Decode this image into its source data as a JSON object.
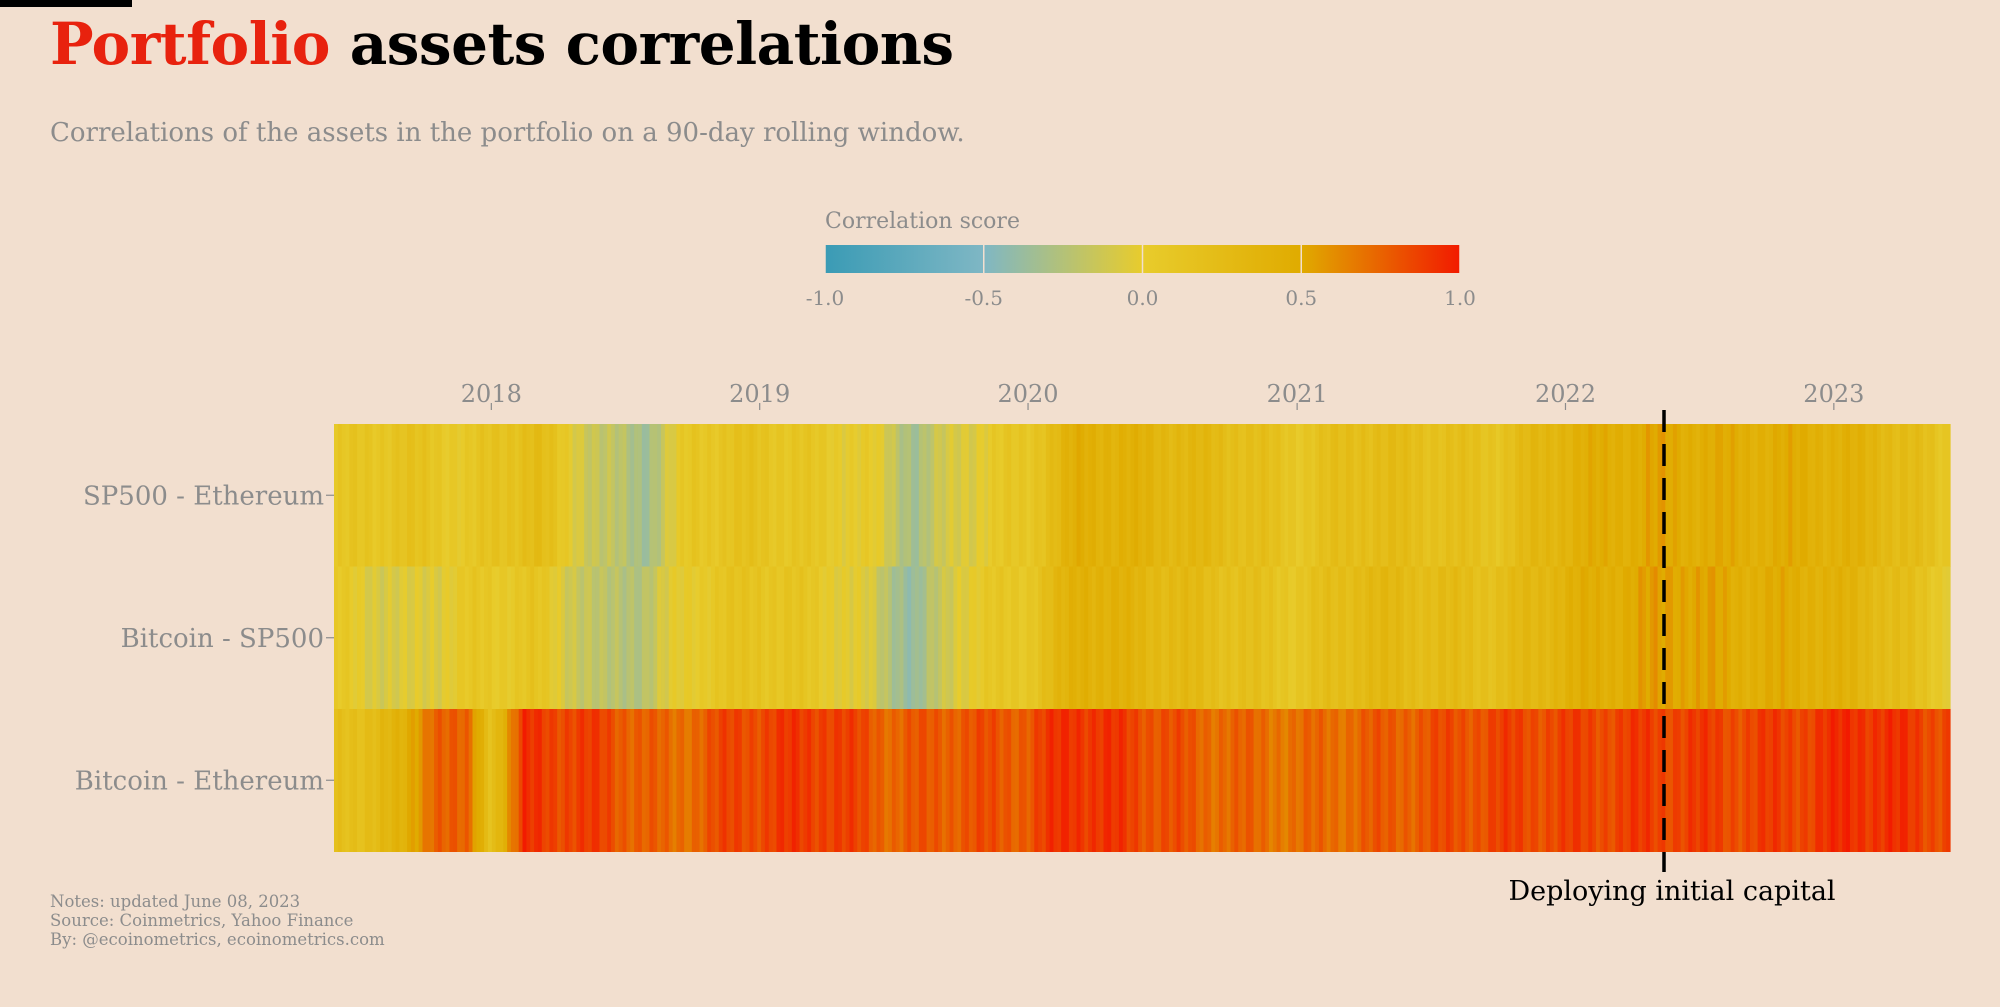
{
  "title": {
    "accent": "Portfolio",
    "rest": "assets correlations"
  },
  "subtitle": "Correlations of the assets in the portfolio on a 90-day rolling window.",
  "notes": [
    "Notes: updated June 08, 2023",
    "Source: Coinmetrics, Yahoo Finance",
    "By: @ecoinometrics, ecoinometrics.com"
  ],
  "colors": {
    "background": "#f2dfcf",
    "accent": "#e8220e",
    "scale": [
      "#3a9bb5",
      "#7fb7c4",
      "#e8cc2c",
      "#e0ab00",
      "#f21a00"
    ]
  },
  "chart_data": {
    "type": "heatmap",
    "legend": {
      "title": "Correlation score",
      "ticks": [
        "-1.0",
        "-0.5",
        "0.0",
        "0.5",
        "1.0"
      ],
      "range": [
        -1,
        1
      ],
      "placement": "top"
    },
    "x_ticks": [
      "2018",
      "2019",
      "2020",
      "2021",
      "2022",
      "2023"
    ],
    "x_range": [
      "2017-06",
      "2023-06"
    ],
    "rows": [
      "SP500 - Ethereum",
      "Bitcoin - SP500",
      "Bitcoin - Ethereum"
    ],
    "keyframes": {
      "SP500 - Ethereum": [
        [
          "2017-06-01",
          0.05
        ],
        [
          "2017-09-01",
          0.15
        ],
        [
          "2017-12-01",
          0.05
        ],
        [
          "2018-03-01",
          0.25
        ],
        [
          "2018-06-01",
          -0.2
        ],
        [
          "2018-08-01",
          -0.3
        ],
        [
          "2018-10-01",
          0.1
        ],
        [
          "2019-01-01",
          0.15
        ],
        [
          "2019-04-01",
          0.05
        ],
        [
          "2019-06-01",
          0.0
        ],
        [
          "2019-08-01",
          -0.3
        ],
        [
          "2019-10-01",
          -0.05
        ],
        [
          "2020-01-01",
          0.1
        ],
        [
          "2020-03-15",
          0.45
        ],
        [
          "2020-07-01",
          0.35
        ],
        [
          "2020-10-01",
          0.25
        ],
        [
          "2021-01-01",
          0.1
        ],
        [
          "2021-04-01",
          0.25
        ],
        [
          "2021-07-01",
          0.2
        ],
        [
          "2021-10-01",
          0.15
        ],
        [
          "2022-01-01",
          0.4
        ],
        [
          "2022-05-01",
          0.5
        ],
        [
          "2022-08-01",
          0.45
        ],
        [
          "2022-12-01",
          0.45
        ],
        [
          "2023-03-01",
          0.35
        ],
        [
          "2023-06-01",
          0.1
        ]
      ],
      "Bitcoin - SP500": [
        [
          "2017-06-01",
          0.05
        ],
        [
          "2017-09-01",
          -0.1
        ],
        [
          "2017-12-01",
          0.05
        ],
        [
          "2018-03-01",
          0.1
        ],
        [
          "2018-06-01",
          -0.25
        ],
        [
          "2018-08-01",
          -0.2
        ],
        [
          "2018-10-01",
          0.05
        ],
        [
          "2019-01-01",
          0.15
        ],
        [
          "2019-04-01",
          0.05
        ],
        [
          "2019-06-01",
          -0.1
        ],
        [
          "2019-08-01",
          -0.4
        ],
        [
          "2019-10-01",
          0.0
        ],
        [
          "2020-01-01",
          0.1
        ],
        [
          "2020-03-15",
          0.45
        ],
        [
          "2020-07-01",
          0.3
        ],
        [
          "2020-10-01",
          0.2
        ],
        [
          "2021-01-01",
          0.1
        ],
        [
          "2021-04-01",
          0.3
        ],
        [
          "2021-07-01",
          0.25
        ],
        [
          "2021-10-01",
          0.2
        ],
        [
          "2022-01-01",
          0.4
        ],
        [
          "2022-06-01",
          0.55
        ],
        [
          "2022-09-01",
          0.45
        ],
        [
          "2022-12-01",
          0.45
        ],
        [
          "2023-03-01",
          0.3
        ],
        [
          "2023-06-01",
          0.05
        ]
      ],
      "Bitcoin - Ethereum": [
        [
          "2017-06-01",
          0.15
        ],
        [
          "2017-09-01",
          0.35
        ],
        [
          "2017-10-15",
          0.8
        ],
        [
          "2017-12-01",
          0.7
        ],
        [
          "2018-01-01",
          0.2
        ],
        [
          "2018-02-15",
          0.9
        ],
        [
          "2018-06-01",
          0.85
        ],
        [
          "2018-09-01",
          0.7
        ],
        [
          "2018-12-01",
          0.85
        ],
        [
          "2019-04-01",
          0.9
        ],
        [
          "2019-07-01",
          0.75
        ],
        [
          "2019-10-01",
          0.8
        ],
        [
          "2020-01-01",
          0.8
        ],
        [
          "2020-03-01",
          0.95
        ],
        [
          "2020-06-01",
          0.85
        ],
        [
          "2020-09-01",
          0.75
        ],
        [
          "2021-01-01",
          0.7
        ],
        [
          "2021-04-01",
          0.75
        ],
        [
          "2021-07-01",
          0.8
        ],
        [
          "2021-10-01",
          0.85
        ],
        [
          "2022-01-01",
          0.85
        ],
        [
          "2022-06-01",
          0.88
        ],
        [
          "2022-09-01",
          0.85
        ],
        [
          "2022-12-01",
          0.88
        ],
        [
          "2023-02-01",
          0.95
        ],
        [
          "2023-06-01",
          0.85
        ]
      ]
    },
    "annotation": {
      "date": "2022-05-15",
      "label": "Deploying initial capital"
    }
  }
}
